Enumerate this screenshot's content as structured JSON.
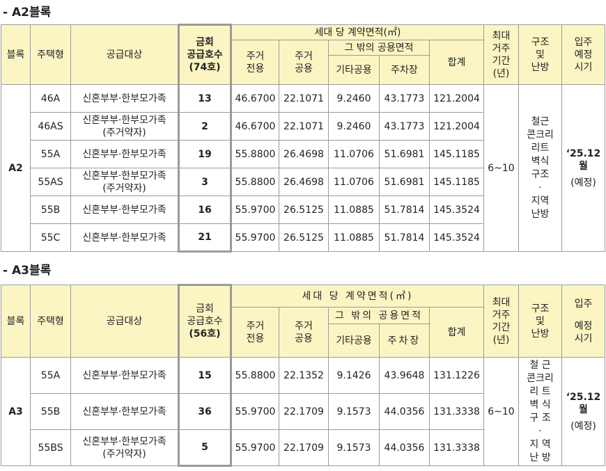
{
  "a2": {
    "title": "-  A2블록",
    "header": {
      "block": "블록",
      "type": "주택형",
      "target": "공급대상",
      "supply_line1": "금회",
      "supply_line2": "공급호수",
      "supply_line3": "(74호)",
      "area": "세대 당 계약면적(㎡)",
      "resid_excl_1": "주거",
      "resid_excl_2": "전용",
      "resid_comm_1": "주거",
      "resid_comm_2": "공용",
      "other_area": "그 밖의 공용면적",
      "other_common": "기타공용",
      "parking": "주차장",
      "total": "합계",
      "max_1": "최대",
      "max_2": "거주",
      "max_3": "기간",
      "max_4": "(년)",
      "struct_1": "구조",
      "struct_2": "및",
      "struct_3": "난방",
      "move_1": "입주",
      "move_2": "예정",
      "move_3": "시기"
    },
    "block_name": "A2",
    "residence_period": "6~10",
    "structure_lines": [
      "철근",
      "콘크리",
      "리트",
      "벽식",
      "구조",
      "·",
      "지역",
      "난방"
    ],
    "move_in_1": "‘25.12월",
    "move_in_2": "(예정)",
    "rows": [
      {
        "type": "46A",
        "target1": "신혼부부·한부모가족",
        "target2": "",
        "supply": "13",
        "excl": "46.6700",
        "comm": "22.1071",
        "other": "9.2460",
        "parking": "43.1773",
        "total": "121.2004"
      },
      {
        "type": "46AS",
        "target1": "신혼부부·한부모가족",
        "target2": "(주거약자)",
        "supply": "2",
        "excl": "46.6700",
        "comm": "22.1071",
        "other": "9.2460",
        "parking": "43.1773",
        "total": "121.2004"
      },
      {
        "type": "55A",
        "target1": "신혼부부·한부모가족",
        "target2": "",
        "supply": "19",
        "excl": "55.8800",
        "comm": "26.4698",
        "other": "11.0706",
        "parking": "51.6981",
        "total": "145.1185"
      },
      {
        "type": "55AS",
        "target1": "신혼부부·한부모가족",
        "target2": "(주거약자)",
        "supply": "3",
        "excl": "55.8800",
        "comm": "26.4698",
        "other": "11.0706",
        "parking": "51.6981",
        "total": "145.1185"
      },
      {
        "type": "55B",
        "target1": "신혼부부·한부모가족",
        "target2": "",
        "supply": "16",
        "excl": "55.9700",
        "comm": "26.5125",
        "other": "11.0885",
        "parking": "51.7814",
        "total": "145.3524"
      },
      {
        "type": "55C",
        "target1": "신혼부부·한부모가족",
        "target2": "",
        "supply": "21",
        "excl": "55.9700",
        "comm": "26.5125",
        "other": "11.0885",
        "parking": "51.7814",
        "total": "145.3524"
      }
    ]
  },
  "a3": {
    "title": "-  A3블록",
    "header": {
      "block": "블록",
      "type": "주택형",
      "target": "공급대상",
      "supply_line1": "금회",
      "supply_line2": "공급호수",
      "supply_line3": "(56호)",
      "area": "세대 당 계약면적(㎡)",
      "resid_excl_1": "주거",
      "resid_excl_2": "전용",
      "resid_comm_1": "주거",
      "resid_comm_2": "공용",
      "other_area": "그 밖의 공용면적",
      "other_common": "기타공용",
      "parking": "주차장",
      "total": "합계",
      "max_1": "최대",
      "max_2": "거주",
      "max_3": "기간",
      "max_4": "(년)",
      "struct_1": "구조",
      "struct_2": "및",
      "struct_3": "난방",
      "move_1": "입주",
      "move_2": "예정",
      "move_3": "시기"
    },
    "block_name": "A3",
    "residence_period": "6~10",
    "structure_lines": [
      "철 근",
      "콘크리",
      "리 트",
      "벽 식",
      "구 조",
      "·",
      "지 역",
      "난 방"
    ],
    "move_in_1": "‘25.12",
    "move_in_2": "월",
    "move_in_3": "(예정)",
    "rows": [
      {
        "type": "55A",
        "target1": "신혼부부·한부모가족",
        "target2": "",
        "supply": "15",
        "excl": "55.8800",
        "comm": "22.1352",
        "other": "9.1426",
        "parking": "43.9648",
        "total": "131.1226"
      },
      {
        "type": "55B",
        "target1": "신혼부부·한부모가족",
        "target2": "",
        "supply": "36",
        "excl": "55.9700",
        "comm": "22.1709",
        "other": "9.1573",
        "parking": "44.0356",
        "total": "131.3338"
      },
      {
        "type": "55BS",
        "target1": "신혼부부·한부모가족",
        "target2": "(주거약자)",
        "supply": "5",
        "excl": "55.9700",
        "comm": "22.1709",
        "other": "9.1573",
        "parking": "44.0356",
        "total": "131.3338"
      }
    ]
  }
}
